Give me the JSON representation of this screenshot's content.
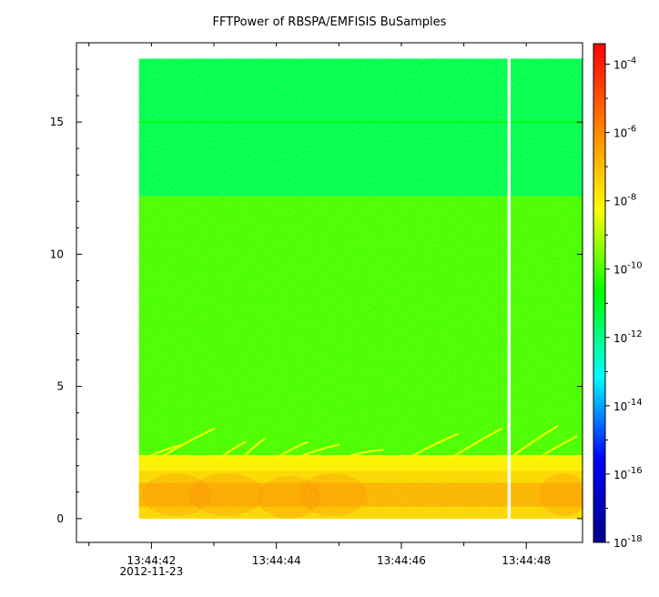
{
  "chart_data": {
    "type": "heatmap",
    "title": "FFTPower of RBSPA/EMFISIS  BuSamples",
    "date_label": "2012-11-23",
    "xlabel": "",
    "ylabel": "",
    "x_range": [
      "13:44:40.8",
      "13:44:48.9"
    ],
    "ylim": [
      -0.9,
      18.0
    ],
    "x_ticks": [
      {
        "time": "13:44:41",
        "label": ""
      },
      {
        "time": "13:44:42",
        "label": "13:44:42"
      },
      {
        "time": "13:44:43",
        "label": ""
      },
      {
        "time": "13:44:44",
        "label": "13:44:44"
      },
      {
        "time": "13:44:45",
        "label": ""
      },
      {
        "time": "13:44:46",
        "label": "13:44:46"
      },
      {
        "time": "13:44:47",
        "label": ""
      },
      {
        "time": "13:44:48",
        "label": "13:44:48"
      }
    ],
    "y_ticks": [
      0,
      5,
      10,
      15
    ],
    "colorbar": {
      "scale": "log",
      "range_exponent": [
        -18,
        -3.4
      ],
      "colors": [
        "#00008b",
        "#0000ff",
        "#00ffff",
        "#00ff00",
        "#ffff00",
        "#ff8000",
        "#ff0000"
      ],
      "ticks": [
        {
          "exponent": -18,
          "base": "10",
          "exp": "-18"
        },
        {
          "exponent": -16,
          "base": "10",
          "exp": "-16"
        },
        {
          "exponent": -14,
          "base": "10",
          "exp": "-14"
        },
        {
          "exponent": -12,
          "base": "10",
          "exp": "-12"
        },
        {
          "exponent": -10,
          "base": "10",
          "exp": "-10"
        },
        {
          "exponent": -8,
          "base": "10",
          "exp": "-8"
        },
        {
          "exponent": -6,
          "base": "10",
          "exp": "-6"
        },
        {
          "exponent": -4,
          "base": "10",
          "exp": "-4"
        }
      ]
    },
    "data_start": "13:44:41.8",
    "data_gap": [
      "13:44:47.7",
      "13:44:47.75"
    ],
    "freq_top": 17.4,
    "bands": [
      {
        "freq_range": [
          12.2,
          17.4
        ],
        "log10_power": -11.5
      },
      {
        "freq_range": [
          2.4,
          12.2
        ],
        "log10_power": -10.0
      },
      {
        "freq_range": [
          0,
          2.4
        ],
        "log10_power": -8.0
      }
    ],
    "line_features": [
      {
        "freq": 15.0,
        "log10_power": -10.8
      }
    ],
    "chorus_streaks": [
      {
        "t0": "13:44:42.0",
        "t1": "13:44:42.5",
        "f0": 2.4,
        "f1": 2.8
      },
      {
        "t0": "13:44:42.2",
        "t1": "13:44:43.0",
        "f0": 2.4,
        "f1": 3.4
      },
      {
        "t0": "13:44:43.1",
        "t1": "13:44:43.5",
        "f0": 2.3,
        "f1": 2.9
      },
      {
        "t0": "13:44:43.5",
        "t1": "13:44:43.8",
        "f0": 2.4,
        "f1": 3.0
      },
      {
        "t0": "13:44:44.0",
        "t1": "13:44:44.5",
        "f0": 2.3,
        "f1": 2.9
      },
      {
        "t0": "13:44:44.3",
        "t1": "13:44:45.0",
        "f0": 2.3,
        "f1": 2.8
      },
      {
        "t0": "13:44:45.2",
        "t1": "13:44:45.7",
        "f0": 2.4,
        "f1": 2.6
      },
      {
        "t0": "13:44:46.2",
        "t1": "13:44:46.9",
        "f0": 2.4,
        "f1": 3.2
      },
      {
        "t0": "13:44:46.8",
        "t1": "13:44:47.6",
        "f0": 2.3,
        "f1": 3.4
      },
      {
        "t0": "13:44:47.8",
        "t1": "13:44:48.5",
        "f0": 2.4,
        "f1": 3.5
      },
      {
        "t0": "13:44:48.2",
        "t1": "13:44:48.8",
        "f0": 2.3,
        "f1": 3.1
      }
    ],
    "grid": false,
    "legend": "colorbar-right"
  }
}
